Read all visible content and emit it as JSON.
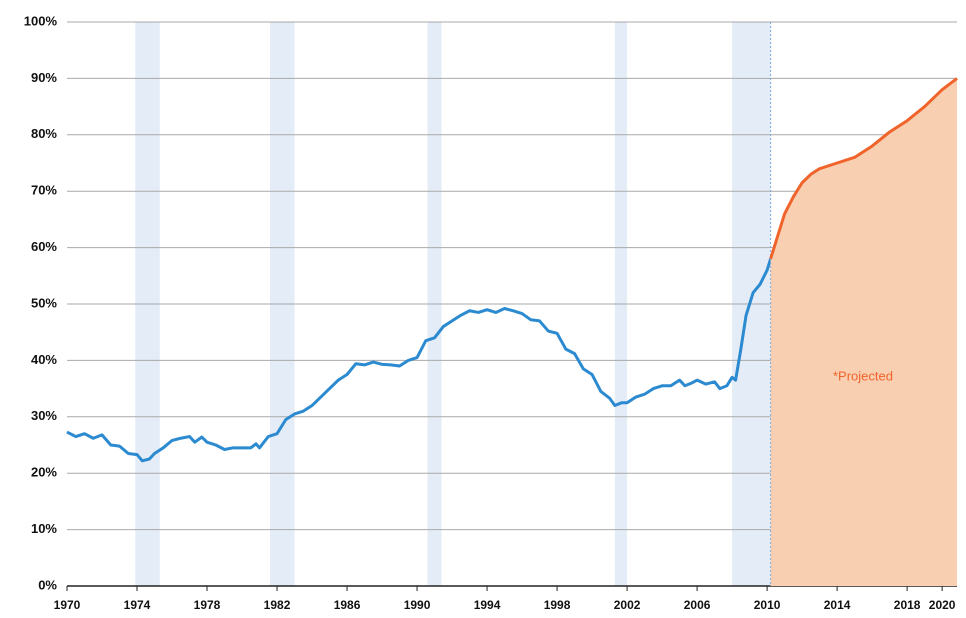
{
  "chart_data": {
    "type": "line",
    "annotation": "*Projected",
    "xlim": [
      1970,
      2020.85
    ],
    "xticks": [
      1970,
      1974,
      1978,
      1982,
      1986,
      1990,
      1994,
      1998,
      2002,
      2006,
      2010,
      2014,
      2018,
      2020
    ],
    "ylim": [
      0,
      100
    ],
    "yticks": [
      {
        "value": 0,
        "label": "0%"
      },
      {
        "value": 10,
        "label": "10%"
      },
      {
        "value": 20,
        "label": "20%"
      },
      {
        "value": 30,
        "label": "30%"
      },
      {
        "value": 40,
        "label": "40%"
      },
      {
        "value": 50,
        "label": "50%"
      },
      {
        "value": 60,
        "label": "60%"
      },
      {
        "value": 70,
        "label": "70%"
      },
      {
        "value": 80,
        "label": "80%"
      },
      {
        "value": 90,
        "label": "90%"
      },
      {
        "value": 100,
        "label": "100%"
      }
    ],
    "grid": true,
    "shaded_ranges": [
      [
        1973.9,
        1975.3
      ],
      [
        1981.6,
        1983.0
      ],
      [
        1990.6,
        1991.4
      ],
      [
        2001.3,
        2002.0
      ],
      [
        2008.0,
        2010.2
      ]
    ],
    "shade_color": "#e4ecf7",
    "series": [
      {
        "color": "#2b8ad0",
        "fill": false,
        "x": [
          1970,
          1970.5,
          1971,
          1971.5,
          1972,
          1972.5,
          1973,
          1973.5,
          1974,
          1974.3,
          1974.7,
          1975,
          1975.5,
          1976,
          1976.5,
          1977,
          1977.3,
          1977.7,
          1978,
          1978.5,
          1979,
          1979.5,
          1980,
          1980.5,
          1980.8,
          1981,
          1981.5,
          1982,
          1982.5,
          1983,
          1983.5,
          1984,
          1984.5,
          1985,
          1985.5,
          1986,
          1986.5,
          1987,
          1987.5,
          1988,
          1988.5,
          1989,
          1989.5,
          1990,
          1990.5,
          1991,
          1991.5,
          1992,
          1992.5,
          1993,
          1993.5,
          1994,
          1994.5,
          1995,
          1995.5,
          1996,
          1996.5,
          1997,
          1997.5,
          1998,
          1998.5,
          1999,
          1999.5,
          2000,
          2000.5,
          2001,
          2001.3,
          2001.7,
          2002,
          2002.5,
          2003,
          2003.5,
          2004,
          2004.5,
          2005,
          2005.3,
          2005.7,
          2006,
          2006.5,
          2007,
          2007.3,
          2007.7,
          2008,
          2008.2,
          2008.5,
          2008.8,
          2009.2,
          2009.6,
          2010.0,
          2010.2
        ],
        "values": [
          27.3,
          26.5,
          27,
          26.2,
          26.8,
          25,
          24.8,
          23.5,
          23.3,
          22.2,
          22.5,
          23.5,
          24.5,
          25.8,
          26.2,
          26.5,
          25.5,
          26.4,
          25.5,
          25,
          24.2,
          24.5,
          24.5,
          24.5,
          25.2,
          24.5,
          26.5,
          27,
          29.5,
          30.5,
          31,
          32,
          33.5,
          35,
          36.5,
          37.5,
          39.4,
          39.2,
          39.7,
          39.3,
          39.2,
          39,
          40,
          40.5,
          43.5,
          44,
          46,
          47,
          48,
          48.8,
          48.5,
          49,
          48.5,
          49.2,
          48.8,
          48.3,
          47.2,
          47,
          45.2,
          44.8,
          42,
          41.2,
          38.5,
          37.5,
          34.5,
          33.3,
          32,
          32.5,
          32.5,
          33.5,
          34,
          35,
          35.5,
          35.5,
          36.5,
          35.5,
          36,
          36.5,
          35.8,
          36.2,
          35,
          35.5,
          37,
          36.5,
          42,
          48,
          52,
          53.5,
          56,
          58
        ]
      },
      {
        "color": "#f0642b",
        "fill": true,
        "fill_color": "#f9cfb2",
        "x": [
          2010.2,
          2010.6,
          2011,
          2011.5,
          2012,
          2012.5,
          2013,
          2014,
          2015,
          2016,
          2017,
          2018,
          2019,
          2020,
          2020.85
        ],
        "values": [
          58,
          62,
          66,
          69,
          71.5,
          73,
          74,
          75,
          76,
          78,
          80.5,
          82.5,
          85,
          88,
          90
        ]
      }
    ]
  }
}
